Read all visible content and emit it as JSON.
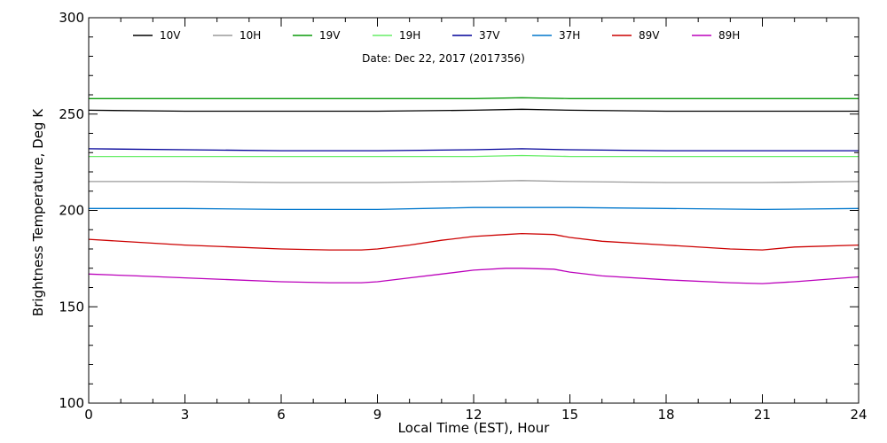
{
  "chart_data": {
    "type": "line",
    "title": "",
    "annotation": "Date: Dec 22, 2017 (2017356)",
    "xlabel": "Local Time (EST), Hour",
    "ylabel": "Brightness Temperature, Deg K",
    "xlim": [
      0,
      24
    ],
    "ylim": [
      100,
      300
    ],
    "xticks": [
      0,
      3,
      6,
      9,
      12,
      15,
      18,
      21,
      24
    ],
    "yticks": [
      100,
      150,
      200,
      250,
      300
    ],
    "legend_position": "top",
    "series": [
      {
        "name": "10V",
        "color": "#000000",
        "x": [
          0,
          3,
          6,
          9,
          12,
          13.5,
          15,
          18,
          21,
          24
        ],
        "y": [
          252,
          251.5,
          251.5,
          251.5,
          252,
          252.5,
          252,
          251.5,
          251.5,
          251.5
        ]
      },
      {
        "name": "10H",
        "color": "#9a9a9a",
        "x": [
          0,
          3,
          6,
          9,
          12,
          13.5,
          15,
          18,
          21,
          24
        ],
        "y": [
          215,
          215,
          214.5,
          214.5,
          215,
          215.5,
          215,
          214.5,
          214.5,
          215
        ]
      },
      {
        "name": "19V",
        "color": "#0a9a0a",
        "x": [
          0,
          3,
          6,
          9,
          12,
          13.5,
          15,
          18,
          21,
          24
        ],
        "y": [
          258,
          258,
          258,
          258,
          258,
          258.5,
          258,
          258,
          258,
          258
        ]
      },
      {
        "name": "19H",
        "color": "#66ee66",
        "x": [
          0,
          3,
          6,
          9,
          12,
          13.5,
          15,
          18,
          21,
          24
        ],
        "y": [
          228,
          228,
          228,
          228,
          228,
          228.5,
          228,
          228,
          228,
          228
        ]
      },
      {
        "name": "37V",
        "color": "#000099",
        "x": [
          0,
          3,
          6,
          9,
          12,
          13.5,
          15,
          18,
          21,
          24
        ],
        "y": [
          232,
          231.5,
          231,
          231,
          231.5,
          232,
          231.5,
          231,
          231,
          231
        ]
      },
      {
        "name": "37H",
        "color": "#0077cc",
        "x": [
          0,
          3,
          6,
          9,
          12,
          13.5,
          15,
          18,
          21,
          24
        ],
        "y": [
          201,
          201,
          200.5,
          200.5,
          201.5,
          201.5,
          201.5,
          201,
          200.5,
          201
        ]
      },
      {
        "name": "89V",
        "color": "#cc0000",
        "x": [
          0,
          1.5,
          3,
          4.5,
          6,
          7.5,
          8.5,
          9,
          10,
          11,
          12,
          13,
          13.5,
          14.5,
          15,
          16,
          18,
          20,
          21,
          22,
          24
        ],
        "y": [
          185,
          183.5,
          182,
          181,
          180,
          179.5,
          179.5,
          180,
          182,
          184.5,
          186.5,
          187.5,
          188,
          187.5,
          186,
          184,
          182,
          180,
          179.5,
          181,
          182
        ]
      },
      {
        "name": "89H",
        "color": "#bb00bb",
        "x": [
          0,
          1.5,
          3,
          4.5,
          6,
          7.5,
          8.5,
          9,
          10,
          11,
          12,
          13,
          13.5,
          14.5,
          15,
          16,
          18,
          20,
          21,
          22,
          24
        ],
        "y": [
          167,
          166,
          165,
          164,
          163,
          162.5,
          162.5,
          163,
          165,
          167,
          169,
          170,
          170,
          169.5,
          168,
          166,
          164,
          162.5,
          162,
          163,
          165.5
        ]
      }
    ]
  }
}
